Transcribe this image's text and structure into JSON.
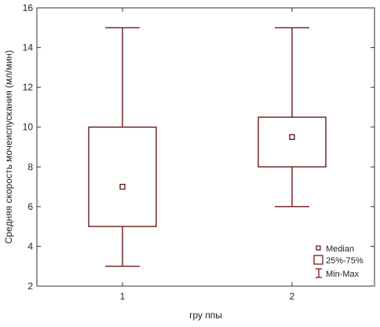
{
  "chart_data": {
    "type": "box",
    "xlabel": "гру ппы",
    "ylabel": "Средняя скорость мочеиспускания (мл/мин)",
    "ylim": [
      2,
      16
    ],
    "yticks": [
      2,
      4,
      6,
      8,
      10,
      12,
      14,
      16
    ],
    "categories": [
      "1",
      "2"
    ],
    "boxes": [
      {
        "category": "1",
        "min": 3,
        "q1": 5,
        "median": 7,
        "q3": 10,
        "max": 15
      },
      {
        "category": "2",
        "min": 6,
        "q1": 8,
        "median": 9.5,
        "q3": 10.5,
        "max": 15
      }
    ],
    "legend": {
      "placement": "bottom-right",
      "items": [
        {
          "label": "Median",
          "symbol": "small-square"
        },
        {
          "label": "25%-75%",
          "symbol": "box"
        },
        {
          "label": "Min-Max",
          "symbol": "whisker"
        }
      ]
    },
    "grid": false,
    "color": "#6b1a1a"
  }
}
